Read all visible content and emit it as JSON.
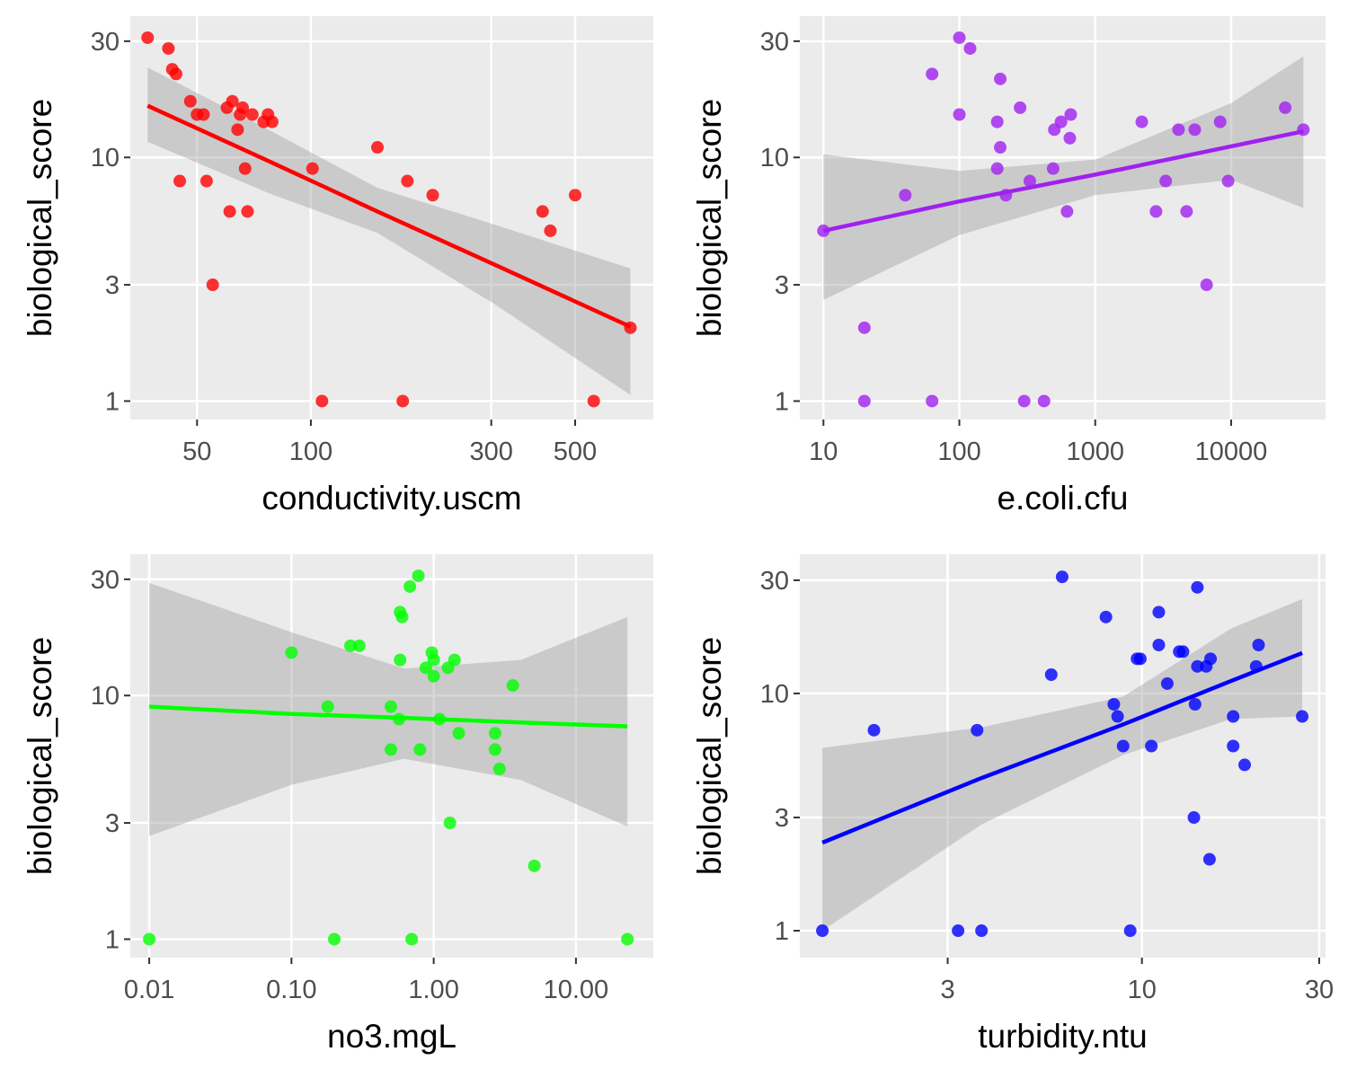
{
  "chart_data": [
    {
      "type": "scatter",
      "x_label": "conductivity.uscm",
      "y_label": "biological_score",
      "color": "#ff0000",
      "log_x": true,
      "log_y": true,
      "grid": true,
      "x": [
        37,
        42,
        43,
        44,
        45,
        48,
        50,
        52,
        53,
        55,
        60,
        61,
        62,
        64,
        65,
        66,
        67,
        68,
        70,
        75,
        77,
        79,
        101,
        107,
        150,
        175,
        180,
        210,
        410,
        430,
        500,
        560,
        700
      ],
      "values": [
        31,
        28,
        23,
        22,
        8,
        17,
        15,
        15,
        8,
        3,
        16,
        6,
        17,
        13,
        15,
        16,
        9,
        6,
        15,
        14,
        15,
        14,
        9,
        1,
        11,
        1,
        8,
        7,
        6,
        5,
        7,
        1,
        2
      ],
      "xlim": [
        33.3,
        805
      ],
      "ylim": [
        0.84,
        38
      ],
      "xticks": [
        50,
        100,
        300,
        500
      ],
      "yticks": [
        1,
        3,
        10,
        30
      ],
      "fit": {
        "x": [
          37,
          78,
          150,
          306,
          700
        ],
        "values": [
          16.3,
          9.6,
          6.0,
          3.63,
          2.02
        ],
        "upper": [
          23.4,
          12.9,
          7.5,
          5.3,
          3.5
        ],
        "lower": [
          11.6,
          7.1,
          4.9,
          2.5,
          1.06
        ]
      }
    },
    {
      "type": "scatter",
      "x_label": "e.coli.cfu",
      "y_label": "biological_score",
      "color": "#a020f0",
      "log_x": true,
      "log_y": true,
      "grid": true,
      "x": [
        10,
        20,
        20,
        40,
        63,
        63,
        100,
        100,
        120,
        190,
        190,
        200,
        200,
        220,
        280,
        330,
        300,
        420,
        490,
        500,
        560,
        650,
        660,
        620,
        2200,
        2800,
        3300,
        4100,
        4700,
        5400,
        6600,
        8300,
        9500,
        25000,
        34000
      ],
      "values": [
        5,
        2,
        1,
        7,
        22,
        1,
        31,
        15,
        28,
        14,
        9,
        11,
        21,
        7,
        16,
        8,
        1,
        1,
        9,
        13,
        14,
        12,
        15,
        6,
        14,
        6,
        8,
        13,
        6,
        13,
        3,
        14,
        8,
        16,
        13
      ],
      "xlim": [
        6.7,
        49500
      ],
      "ylim": [
        0.84,
        38
      ],
      "xticks": [
        10,
        100,
        1000,
        10000
      ],
      "yticks": [
        1,
        3,
        10,
        30
      ],
      "fit": {
        "x": [
          10,
          100,
          1000,
          10000,
          34000
        ],
        "values": [
          5.0,
          6.6,
          8.5,
          11.1,
          12.8
        ],
        "upper": [
          10.3,
          8.8,
          9.8,
          16.7,
          26
        ],
        "lower": [
          2.6,
          4.8,
          7.0,
          8.1,
          6.2
        ]
      }
    },
    {
      "type": "scatter",
      "x_label": "no3.mgL",
      "y_label": "biological_score",
      "color": "#00ff00",
      "log_x": true,
      "log_y": true,
      "grid": true,
      "x": [
        0.01,
        0.1,
        0.18,
        0.2,
        0.26,
        0.3,
        0.5,
        0.5,
        0.57,
        0.58,
        0.58,
        0.6,
        0.68,
        0.7,
        0.78,
        0.8,
        0.88,
        0.97,
        1.0,
        1.0,
        1.1,
        1.26,
        1.3,
        1.4,
        1.5,
        2.7,
        2.7,
        2.9,
        3.6,
        5.1,
        23
      ],
      "values": [
        1,
        15,
        9,
        1,
        16,
        16,
        9,
        6,
        8,
        14,
        22,
        21,
        28,
        1,
        31,
        6,
        13,
        15,
        12,
        14,
        8,
        13,
        3,
        14,
        7,
        7,
        6,
        5,
        11,
        2,
        1
      ],
      "xlim": [
        0.00736,
        35
      ],
      "ylim": [
        0.84,
        38
      ],
      "xticks": [
        0.01,
        {
          "value": 0.1,
          "label": "0.10"
        },
        {
          "value": 1,
          "label": "1.00"
        },
        {
          "value": 10,
          "label": "10.00"
        }
      ],
      "yticks": [
        1,
        3,
        10,
        30
      ],
      "fit": {
        "x": [
          0.01,
          0.1,
          0.62,
          4.1,
          23
        ],
        "values": [
          9.0,
          8.4,
          8.1,
          7.75,
          7.47
        ],
        "upper": [
          29,
          18.2,
          12.9,
          14,
          21
        ],
        "lower": [
          2.65,
          4.3,
          5.5,
          4.5,
          2.9
        ]
      }
    },
    {
      "type": "scatter",
      "x_label": "turbidity.ntu",
      "y_label": "biological_score",
      "color": "#0000ff",
      "log_x": true,
      "log_y": true,
      "grid": true,
      "x": [
        1.38,
        1.9,
        3.2,
        3.7,
        3.6,
        5.7,
        6.1,
        8.0,
        8.4,
        8.6,
        8.9,
        9.3,
        9.7,
        9.9,
        10.6,
        11.1,
        11.1,
        11.7,
        12.6,
        12.9,
        13.8,
        13.9,
        14.1,
        14.1,
        14.9,
        15.3,
        15.2,
        17.6,
        17.6,
        18.9,
        20.3,
        20.6,
        27
      ],
      "values": [
        1,
        7,
        1,
        1,
        7,
        12,
        31,
        21,
        9,
        8,
        6,
        1,
        14,
        14,
        6,
        22,
        16,
        11,
        15,
        15,
        3,
        9,
        13,
        28,
        13,
        14,
        2,
        8,
        6,
        5,
        13,
        16,
        8
      ],
      "xlim": [
        1.2,
        31.2
      ],
      "ylim": [
        0.77,
        38.6
      ],
      "xticks": [
        3,
        10,
        30
      ],
      "yticks": [
        1,
        3,
        10,
        30
      ],
      "fit": {
        "x": [
          1.38,
          3.7,
          8.9,
          17.4,
          27
        ],
        "values": [
          2.35,
          4.4,
          7.4,
          11.3,
          14.8
        ],
        "upper": [
          5.9,
          7.2,
          9.7,
          18.8,
          25
        ],
        "lower": [
          1.0,
          2.8,
          5.5,
          7.8,
          8
        ]
      }
    }
  ]
}
